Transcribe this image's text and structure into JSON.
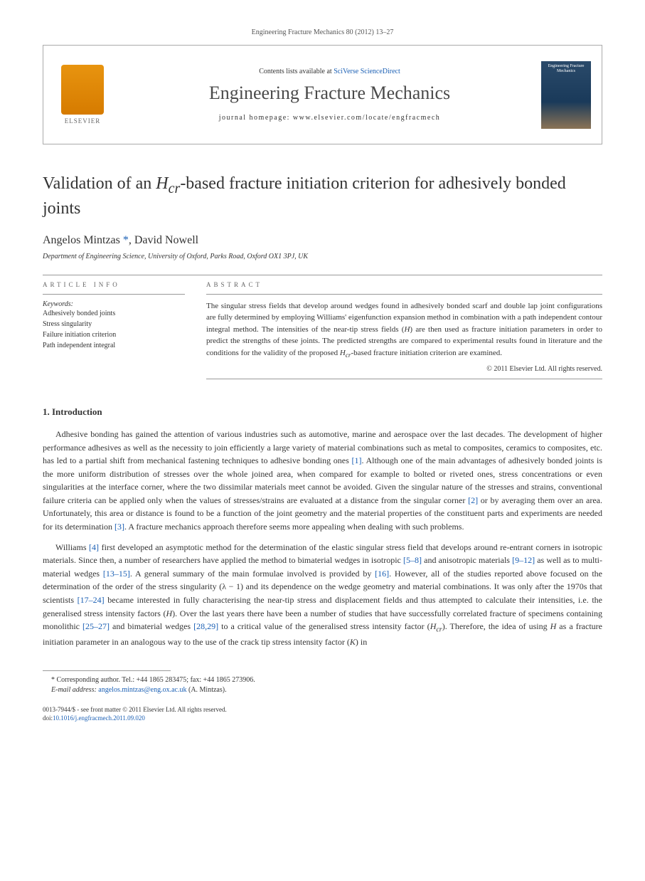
{
  "citation": "Engineering Fracture Mechanics 80 (2012) 13–27",
  "header": {
    "contents_prefix": "Contents lists available at ",
    "contents_link": "SciVerse ScienceDirect",
    "journal_title": "Engineering Fracture Mechanics",
    "homepage_prefix": "journal homepage: ",
    "homepage_url": "www.elsevier.com/locate/engfracmech",
    "elsevier_label": "ELSEVIER",
    "cover_text": "Engineering Fracture Mechanics"
  },
  "title_pre": "Validation of an ",
  "title_em": "H",
  "title_sub": "cr",
  "title_post": "-based fracture initiation criterion for adhesively bonded joints",
  "authors": {
    "a1": "Angelos Mintzas",
    "a1_mark": "*",
    "sep": ", ",
    "a2": "David Nowell"
  },
  "affiliation": "Department of Engineering Science, University of Oxford, Parks Road, Oxford OX1 3PJ, UK",
  "info": {
    "heading": "ARTICLE INFO",
    "keywords_label": "Keywords:",
    "kw1": "Adhesively bonded joints",
    "kw2": "Stress singularity",
    "kw3": "Failure initiation criterion",
    "kw4": "Path independent integral"
  },
  "abstract": {
    "heading": "ABSTRACT",
    "text_a": "The singular stress fields that develop around wedges found in adhesively bonded scarf and double lap joint configurations are fully determined by employing Williams' eigenfunction expansion method in combination with a path independent contour integral method. The intensities of the near-tip stress fields (",
    "text_h": "H",
    "text_b": ") are then used as fracture initiation parameters in order to predict the strengths of these joints. The predicted strengths are compared to experimental results found in literature and the conditions for the validity of the proposed ",
    "text_hcr": "H",
    "text_cr": "cr",
    "text_c": "-based fracture initiation criterion are examined.",
    "copyright": "© 2011 Elsevier Ltd. All rights reserved."
  },
  "intro": {
    "heading": "1. Introduction",
    "p1_a": "Adhesive bonding has gained the attention of various industries such as automotive, marine and aerospace over the last decades. The development of higher performance adhesives as well as the necessity to join efficiently a large variety of material combinations such as metal to composites, ceramics to composites, etc. has led to a partial shift from mechanical fastening techniques to adhesive bonding ones ",
    "p1_r1": "[1]",
    "p1_b": ". Although one of the main advantages of adhesively bonded joints is the more uniform distribution of stresses over the whole joined area, when compared for example to bolted or riveted ones, stress concentrations or even singularities at the interface corner, where the two dissimilar materials meet cannot be avoided. Given the singular nature of the stresses and strains, conventional failure criteria can be applied only when the values of stresses/strains are evaluated at a distance from the singular corner ",
    "p1_r2": "[2]",
    "p1_c": " or by averaging them over an area. Unfortunately, this area or distance is found to be a function of the joint geometry and the material properties of the constituent parts and experiments are needed for its determination ",
    "p1_r3": "[3]",
    "p1_d": ". A fracture mechanics approach therefore seems more appealing when dealing with such problems.",
    "p2_a": "Williams ",
    "p2_r4": "[4]",
    "p2_b": " first developed an asymptotic method for the determination of the elastic singular stress field that develops around re-entrant corners in isotropic materials. Since then, a number of researchers have applied the method to bimaterial wedges in isotropic ",
    "p2_r58": "[5–8]",
    "p2_c": " and anisotropic materials ",
    "p2_r912": "[9–12]",
    "p2_d": " as well as to multi-material wedges ",
    "p2_r1315": "[13–15]",
    "p2_e": ". A general summary of the main formulae involved is provided by ",
    "p2_r16": "[16]",
    "p2_f": ". However, all of the studies reported above focused on the determination of the order of the stress singularity (λ − 1) and its dependence on the wedge geometry and material combinations. It was only after the 1970s that scientists ",
    "p2_r1724": "[17–24]",
    "p2_g": " became interested in fully characterising the near-tip stress and displacement fields and thus attempted to calculate their intensities, i.e. the generalised stress intensity factors (",
    "p2_h1": "H",
    "p2_h": "). Over the last years there have been a number of studies that have successfully correlated fracture of specimens containing monolithic ",
    "p2_r2527": "[25–27]",
    "p2_i": " and bimaterial wedges ",
    "p2_r2829": "[28,29]",
    "p2_j": " to a critical value of the generalised stress intensity factor (",
    "p2_h2": "H",
    "p2_cr": "cr",
    "p2_k": "). Therefore, the idea of using ",
    "p2_h3": "H",
    "p2_l": " as a fracture initiation parameter in an analogous way to the use of the crack tip stress intensity factor (",
    "p2_K": "K",
    "p2_m": ") in"
  },
  "footnote": {
    "corr": "* Corresponding author. Tel.: +44 1865 283475; fax: +44 1865 273906.",
    "email_label": "E-mail address: ",
    "email": "angelos.mintzas@eng.ox.ac.uk",
    "email_suffix": " (A. Mintzas)."
  },
  "bottom": {
    "line1": "0013-7944/$ - see front matter © 2011 Elsevier Ltd. All rights reserved.",
    "doi_label": "doi:",
    "doi": "10.1016/j.engfracmech.2011.09.020"
  }
}
